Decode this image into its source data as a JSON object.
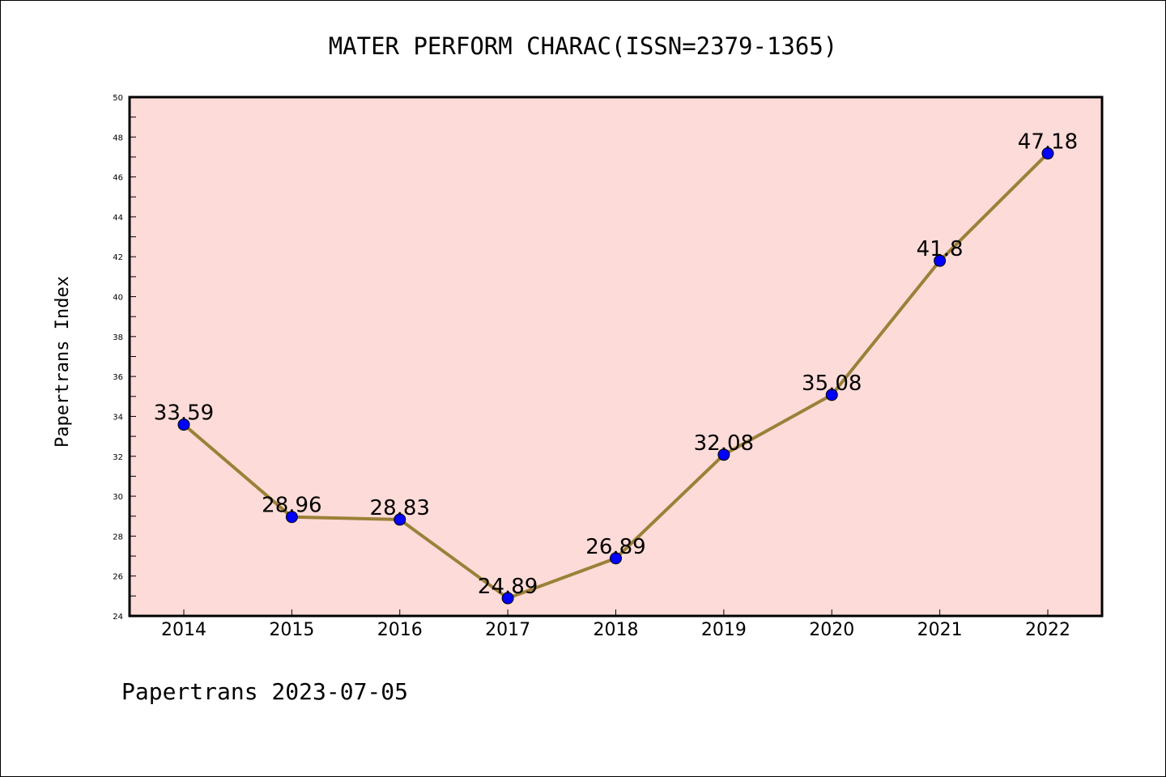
{
  "chart_data": {
    "type": "line",
    "title": "MATER PERFORM CHARAC(ISSN=2379-1365)",
    "xlabel": "",
    "ylabel": "Papertrans Index",
    "categories": [
      "2014",
      "2015",
      "2016",
      "2017",
      "2018",
      "2019",
      "2020",
      "2021",
      "2022"
    ],
    "series": [
      {
        "values": [
          33.59,
          28.96,
          28.83,
          24.89,
          26.89,
          32.08,
          35.08,
          41.8,
          47.18
        ],
        "labels": [
          "33.59",
          "28.96",
          "28.83",
          "24.89",
          "26.89",
          "32.08",
          "35.08",
          "41.8",
          "47.18"
        ]
      }
    ],
    "ylim": [
      24,
      50
    ],
    "yticks": [
      "24",
      "26",
      "28",
      "30",
      "32",
      "34",
      "36",
      "38",
      "40",
      "42",
      "44",
      "46",
      "48",
      "50"
    ],
    "grid": false,
    "legend": "none",
    "colors": {
      "plot_background": "#fddbd8",
      "line": "#9b8038",
      "marker": "#0000ff",
      "marker_edge": "#000000",
      "axes": "#000000"
    }
  },
  "footer": {
    "text": "Papertrans 2023-07-05"
  }
}
